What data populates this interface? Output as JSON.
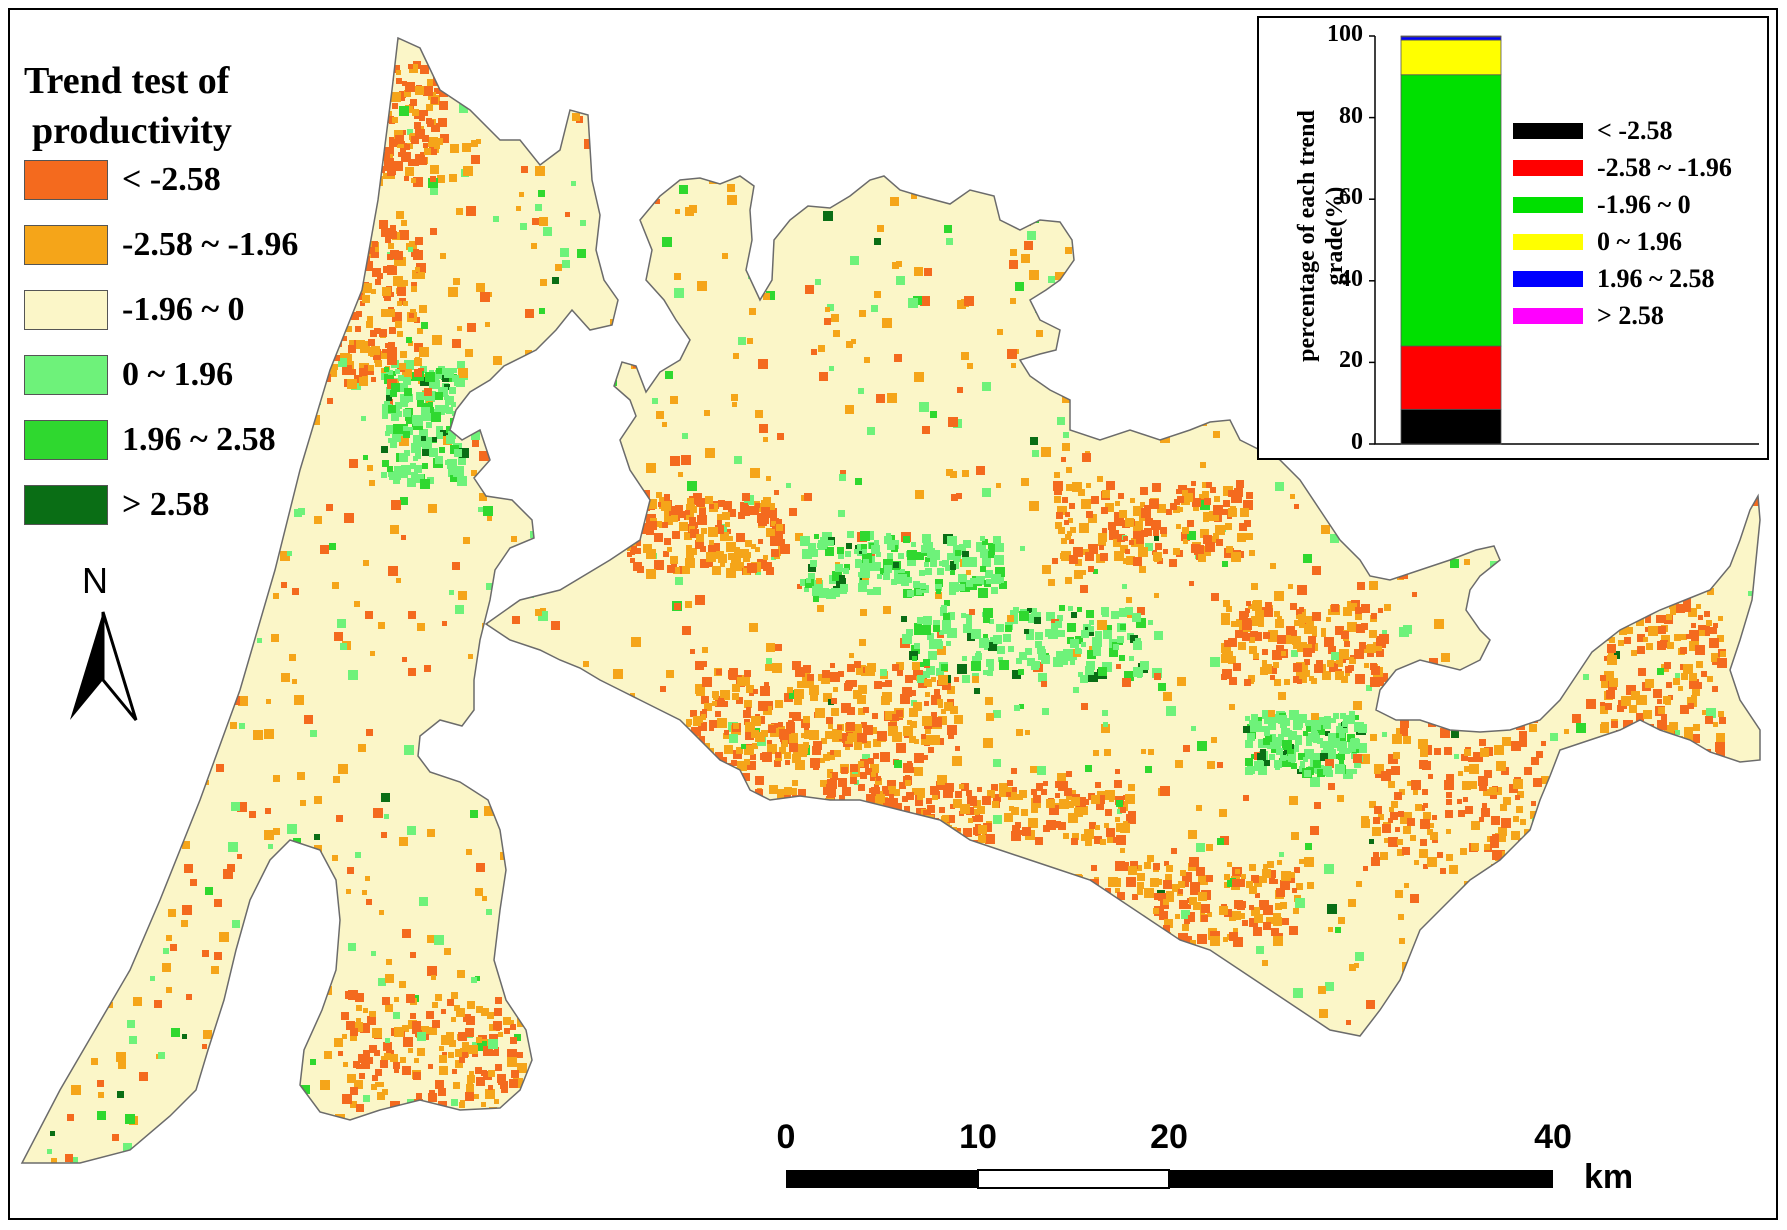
{
  "legend": {
    "title_line1": "Trend test of",
    "title_line2": "productivity",
    "items": [
      {
        "label": "< -2.58",
        "color": "#f46a1e"
      },
      {
        "label": "-2.58 ~ -1.96",
        "color": "#f5a519"
      },
      {
        "label": "-1.96 ~ 0",
        "color": "#fbf6c8"
      },
      {
        "label": "0 ~ 1.96",
        "color": "#6ef27a"
      },
      {
        "label": "1.96 ~ 2.58",
        "color": "#2fd82f"
      },
      {
        "label": "> 2.58",
        "color": "#0a6e15"
      }
    ]
  },
  "north_arrow": {
    "label": "N"
  },
  "scale_bar": {
    "ticks": [
      "0",
      "10",
      "20",
      "40"
    ],
    "unit": "km"
  },
  "chart_data": {
    "type": "bar",
    "stacked": true,
    "ylabel_line1": "percentage of each trend",
    "ylabel_line2": "grade(%)",
    "ylim": [
      0,
      100
    ],
    "yticks": [
      "0",
      "20",
      "40",
      "60",
      "80",
      "100"
    ],
    "legend_placement": "right",
    "series": [
      {
        "name": "< -2.58",
        "value": 8.5,
        "color": "#000000"
      },
      {
        "name": "-2.58 ~ -1.96",
        "value": 15.5,
        "color": "#ff0000"
      },
      {
        "name": "-1.96 ~ 0",
        "value": 66.5,
        "color": "#00e000"
      },
      {
        "name": "0 ~ 1.96",
        "value": 8.5,
        "color": "#ffff00"
      },
      {
        "name": "1.96 ~ 2.58",
        "value": 0.8,
        "color": "#0000ff"
      },
      {
        "name": "> 2.58",
        "value": 0.2,
        "color": "#ff00ff"
      }
    ]
  }
}
